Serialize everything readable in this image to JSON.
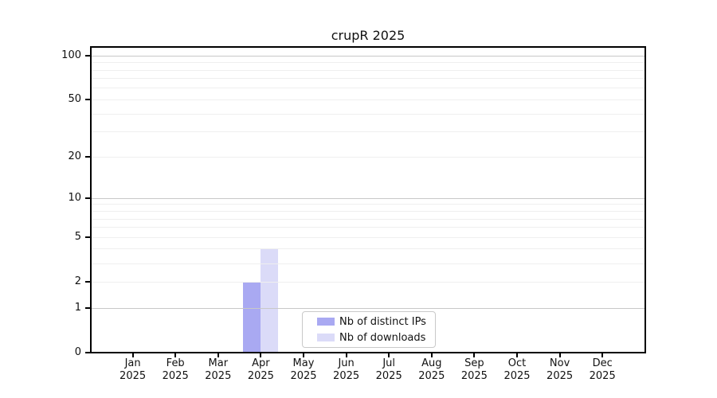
{
  "chart_data": {
    "type": "bar",
    "title": "crupR 2025",
    "categories": [
      "Jan",
      "Feb",
      "Mar",
      "Apr",
      "May",
      "Jun",
      "Jul",
      "Aug",
      "Sep",
      "Oct",
      "Nov",
      "Dec"
    ],
    "category_year": "2025",
    "series": [
      {
        "name": "Nb of distinct IPs",
        "color": "#a9a9f2",
        "values": [
          0,
          0,
          0,
          2,
          0,
          0,
          0,
          0,
          0,
          0,
          0,
          0
        ]
      },
      {
        "name": "Nb of downloads",
        "color": "#dbdbf8",
        "values": [
          0,
          0,
          0,
          4,
          0,
          0,
          0,
          0,
          0,
          0,
          0,
          0
        ]
      }
    ],
    "xlabel": "",
    "ylabel": "",
    "y_axis": {
      "scale": "log(x+1)",
      "tick_values": [
        0,
        1,
        2,
        5,
        10,
        20,
        50,
        100
      ],
      "tick_labels": [
        "0",
        "1",
        "2",
        "5",
        "10",
        "20",
        "50",
        "100"
      ],
      "min": 0,
      "max": 115
    },
    "grid": {
      "on": true,
      "major_values": [
        1,
        10,
        100
      ],
      "minor_values": [
        2,
        3,
        4,
        5,
        6,
        7,
        8,
        9,
        20,
        30,
        40,
        50,
        60,
        70,
        80,
        90
      ]
    },
    "legend": {
      "position": "inside-bottom-center",
      "entries": [
        "Nb of distinct IPs",
        "Nb of downloads"
      ]
    },
    "colors": {
      "major_grid": "#c8c8c8",
      "minor_grid": "#efefef",
      "axis": "#000000",
      "text": "#111111"
    }
  }
}
